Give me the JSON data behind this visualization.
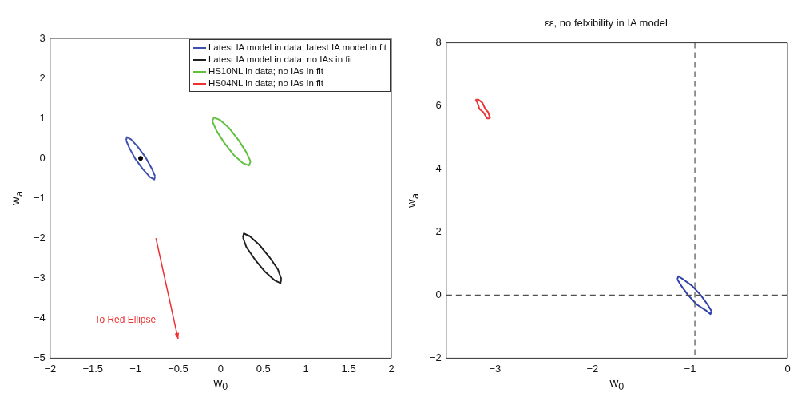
{
  "chart_data": [
    {
      "type": "line",
      "xlabel": "w$_{0}$",
      "ylabel": "w$_{a}$",
      "xlim": [
        -2,
        2
      ],
      "ylim": [
        -5,
        3
      ],
      "xticks": [
        -2,
        -1.5,
        -1,
        -0.5,
        0,
        0.5,
        1,
        1.5,
        2
      ],
      "yticks": [
        -5,
        -4,
        -3,
        -2,
        -1,
        0,
        1,
        2,
        3
      ],
      "grid": false,
      "legend": "top right",
      "marker": "none",
      "line_style": "solid",
      "annotations": [
        "To Red Ellipse"
      ],
      "series": [
        {
          "name": "Latest IA model in data; latest IA model in fit",
          "color": "#4050b0",
          "x": [
            -1.11,
            -1.1,
            -1.05,
            -0.97,
            -0.88,
            -0.81,
            -0.77
          ],
          "values": [
            0.45,
            0.53,
            0.47,
            0.28,
            0.02,
            -0.25,
            -0.45
          ]
        },
        {
          "color": "#4050b0",
          "x": [
            -1.11,
            -1.07,
            -1.0,
            -0.91,
            -0.83,
            -0.78,
            -0.77
          ],
          "values": [
            0.45,
            0.25,
            -0.02,
            -0.28,
            -0.47,
            -0.53,
            -0.45
          ]
        },
        {
          "name": "Latest IA model in data; no IAs in fit",
          "color": "#202020",
          "x": [
            0.26,
            0.27,
            0.34,
            0.45,
            0.57,
            0.67,
            0.71
          ],
          "values": [
            -1.98,
            -1.88,
            -1.95,
            -2.16,
            -2.47,
            -2.78,
            -3.02
          ]
        },
        {
          "color": "#202020",
          "x": [
            0.26,
            0.3,
            0.4,
            0.52,
            0.63,
            0.7,
            0.71
          ],
          "values": [
            -1.98,
            -2.22,
            -2.53,
            -2.84,
            -3.05,
            -3.12,
            -3.02
          ]
        },
        {
          "name": "HS10NL in data; no IAs in fit",
          "color": "#60c040",
          "x": [
            -0.1,
            -0.08,
            -0.01,
            0.1,
            0.21,
            0.3,
            0.35
          ],
          "values": [
            0.93,
            1.02,
            0.96,
            0.75,
            0.45,
            0.15,
            -0.08
          ]
        },
        {
          "color": "#60c040",
          "x": [
            -0.1,
            -0.05,
            0.04,
            0.15,
            0.26,
            0.33,
            0.35
          ],
          "values": [
            0.93,
            0.69,
            0.39,
            0.09,
            -0.12,
            -0.18,
            -0.08
          ]
        },
        {
          "name": "HS04NL in data; no IAs in fit",
          "color": "#f03030"
        },
        {
          "type": "scatter",
          "marker": "circle",
          "color": "#000000",
          "x": [
            -0.94
          ],
          "values": [
            0
          ]
        }
      ]
    },
    {
      "type": "line",
      "title": "εε, no felxibility in IA model",
      "xlabel": "w$_{0}$",
      "ylabel": "w$_{a}$",
      "xlim": [
        -3.5,
        0
      ],
      "ylim": [
        -2,
        8
      ],
      "xticks": [
        -3,
        -2,
        -1,
        0
      ],
      "yticks": [
        -2,
        0,
        2,
        4,
        6,
        8
      ],
      "grid": false,
      "legend": false,
      "marker": "none",
      "line_style": "solid",
      "ref_lines": [
        {
          "axis": "x",
          "value": -0.95,
          "color": "#505050",
          "line_style": "dashed"
        },
        {
          "axis": "y",
          "value": 0,
          "color": "#505050",
          "line_style": "dashed"
        }
      ],
      "series": [
        {
          "color": "#e83838",
          "x": [
            -3.2,
            -3.19,
            -3.17,
            -3.13,
            -3.1,
            -3.07,
            -3.05
          ],
          "values": [
            6.2,
            6.2,
            6.2,
            6.1,
            5.9,
            5.8,
            5.6
          ]
        },
        {
          "color": "#e83838",
          "x": [
            -3.2,
            -3.18,
            -3.16,
            -3.12,
            -3.08,
            -3.06,
            -3.05
          ],
          "values": [
            6.2,
            6.1,
            5.9,
            5.8,
            5.6,
            5.6,
            5.6
          ]
        },
        {
          "color": "#3040a8",
          "x": [
            -1.13,
            -1.12,
            -1.07,
            -0.98,
            -0.89,
            -0.82,
            -0.78
          ],
          "values": [
            0.5,
            0.6,
            0.5,
            0.3,
            0.0,
            -0.3,
            -0.5
          ]
        },
        {
          "color": "#3040a8",
          "x": [
            -1.13,
            -1.09,
            -1.02,
            -0.93,
            -0.83,
            -0.79,
            -0.78
          ],
          "values": [
            0.5,
            0.3,
            0.0,
            -0.3,
            -0.5,
            -0.6,
            -0.5
          ]
        }
      ]
    }
  ]
}
